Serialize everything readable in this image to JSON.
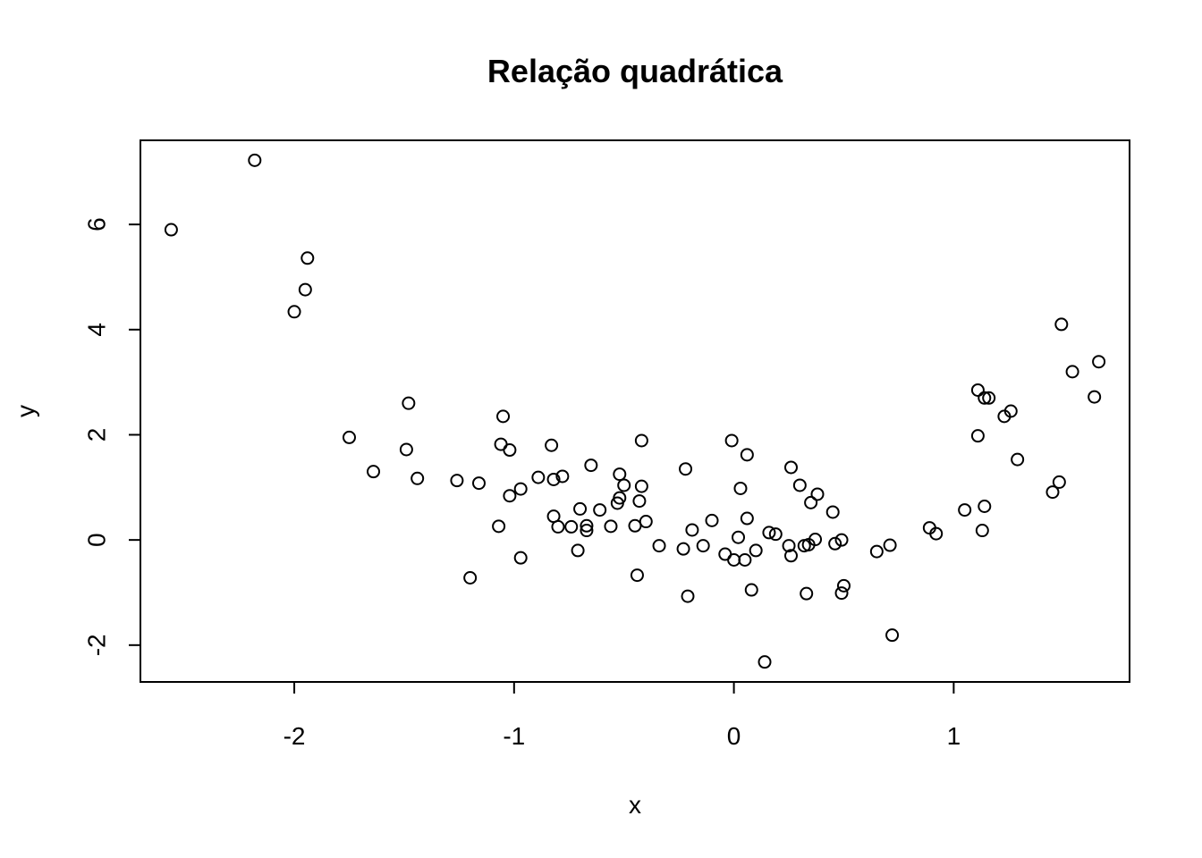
{
  "chart_data": {
    "type": "scatter",
    "title": "Relação quadrática",
    "xlabel": "x",
    "ylabel": "y",
    "xlim": [
      -2.7,
      1.8
    ],
    "ylim": [
      -2.7,
      7.6
    ],
    "xticks": [
      -2,
      -1,
      0,
      1
    ],
    "xtick_labels": [
      "-2",
      "-1",
      "0",
      "1"
    ],
    "yticks": [
      -2,
      0,
      2,
      4,
      6
    ],
    "ytick_labels": [
      "-2",
      "0",
      "2",
      "4",
      "6"
    ],
    "grid": false,
    "points": [
      {
        "x": -2.56,
        "y": 5.9
      },
      {
        "x": -2.18,
        "y": 7.22
      },
      {
        "x": -2.0,
        "y": 4.34
      },
      {
        "x": -1.95,
        "y": 4.76
      },
      {
        "x": -1.94,
        "y": 5.36
      },
      {
        "x": -1.75,
        "y": 1.95
      },
      {
        "x": -1.64,
        "y": 1.3
      },
      {
        "x": -1.49,
        "y": 1.72
      },
      {
        "x": -1.48,
        "y": 2.6
      },
      {
        "x": -1.44,
        "y": 1.17
      },
      {
        "x": -1.26,
        "y": 1.13
      },
      {
        "x": -1.2,
        "y": -0.72
      },
      {
        "x": -1.16,
        "y": 1.08
      },
      {
        "x": -1.07,
        "y": 0.26
      },
      {
        "x": -1.06,
        "y": 1.82
      },
      {
        "x": -1.05,
        "y": 2.35
      },
      {
        "x": -1.02,
        "y": 1.71
      },
      {
        "x": -1.02,
        "y": 0.84
      },
      {
        "x": -0.97,
        "y": 0.97
      },
      {
        "x": -0.97,
        "y": -0.34
      },
      {
        "x": -0.89,
        "y": 1.19
      },
      {
        "x": -0.83,
        "y": 1.8
      },
      {
        "x": -0.82,
        "y": 0.45
      },
      {
        "x": -0.82,
        "y": 1.15
      },
      {
        "x": -0.8,
        "y": 0.25
      },
      {
        "x": -0.78,
        "y": 1.21
      },
      {
        "x": -0.74,
        "y": 0.25
      },
      {
        "x": -0.71,
        "y": -0.2
      },
      {
        "x": -0.7,
        "y": 0.59
      },
      {
        "x": -0.67,
        "y": 0.27
      },
      {
        "x": -0.67,
        "y": 0.18
      },
      {
        "x": -0.65,
        "y": 1.42
      },
      {
        "x": -0.61,
        "y": 0.57
      },
      {
        "x": -0.56,
        "y": 0.26
      },
      {
        "x": -0.53,
        "y": 0.7
      },
      {
        "x": -0.52,
        "y": 0.8
      },
      {
        "x": -0.52,
        "y": 1.25
      },
      {
        "x": -0.5,
        "y": 1.04
      },
      {
        "x": -0.45,
        "y": 0.27
      },
      {
        "x": -0.44,
        "y": -0.67
      },
      {
        "x": -0.43,
        "y": 0.74
      },
      {
        "x": -0.42,
        "y": 1.89
      },
      {
        "x": -0.42,
        "y": 1.02
      },
      {
        "x": -0.4,
        "y": 0.35
      },
      {
        "x": -0.34,
        "y": -0.11
      },
      {
        "x": -0.23,
        "y": -0.17
      },
      {
        "x": -0.22,
        "y": 1.35
      },
      {
        "x": -0.21,
        "y": -1.07
      },
      {
        "x": -0.19,
        "y": 0.19
      },
      {
        "x": -0.14,
        "y": -0.11
      },
      {
        "x": -0.1,
        "y": 0.37
      },
      {
        "x": -0.04,
        "y": -0.27
      },
      {
        "x": -0.01,
        "y": 1.89
      },
      {
        "x": 0.0,
        "y": -0.38
      },
      {
        "x": 0.02,
        "y": 0.05
      },
      {
        "x": 0.03,
        "y": 0.98
      },
      {
        "x": 0.05,
        "y": -0.38
      },
      {
        "x": 0.06,
        "y": 1.62
      },
      {
        "x": 0.06,
        "y": 0.41
      },
      {
        "x": 0.08,
        "y": -0.95
      },
      {
        "x": 0.1,
        "y": -0.2
      },
      {
        "x": 0.14,
        "y": -2.32
      },
      {
        "x": 0.16,
        "y": 0.14
      },
      {
        "x": 0.19,
        "y": 0.11
      },
      {
        "x": 0.25,
        "y": -0.11
      },
      {
        "x": 0.26,
        "y": 1.38
      },
      {
        "x": 0.26,
        "y": -0.3
      },
      {
        "x": 0.3,
        "y": 1.04
      },
      {
        "x": 0.32,
        "y": -0.11
      },
      {
        "x": 0.33,
        "y": -1.02
      },
      {
        "x": 0.34,
        "y": -0.09
      },
      {
        "x": 0.35,
        "y": 0.71
      },
      {
        "x": 0.37,
        "y": 0.01
      },
      {
        "x": 0.38,
        "y": 0.87
      },
      {
        "x": 0.45,
        "y": 0.53
      },
      {
        "x": 0.46,
        "y": -0.07
      },
      {
        "x": 0.49,
        "y": -1.01
      },
      {
        "x": 0.49,
        "y": 0.0
      },
      {
        "x": 0.5,
        "y": -0.87
      },
      {
        "x": 0.65,
        "y": -0.22
      },
      {
        "x": 0.71,
        "y": -0.1
      },
      {
        "x": 0.72,
        "y": -1.81
      },
      {
        "x": 0.89,
        "y": 0.23
      },
      {
        "x": 0.92,
        "y": 0.12
      },
      {
        "x": 1.05,
        "y": 0.57
      },
      {
        "x": 1.11,
        "y": 1.98
      },
      {
        "x": 1.11,
        "y": 2.85
      },
      {
        "x": 1.13,
        "y": 0.18
      },
      {
        "x": 1.14,
        "y": 2.7
      },
      {
        "x": 1.14,
        "y": 0.64
      },
      {
        "x": 1.16,
        "y": 2.7
      },
      {
        "x": 1.23,
        "y": 2.35
      },
      {
        "x": 1.26,
        "y": 2.45
      },
      {
        "x": 1.29,
        "y": 1.53
      },
      {
        "x": 1.45,
        "y": 0.91
      },
      {
        "x": 1.48,
        "y": 1.1
      },
      {
        "x": 1.49,
        "y": 4.1
      },
      {
        "x": 1.54,
        "y": 3.2
      },
      {
        "x": 1.64,
        "y": 2.72
      },
      {
        "x": 1.66,
        "y": 3.39
      }
    ]
  }
}
